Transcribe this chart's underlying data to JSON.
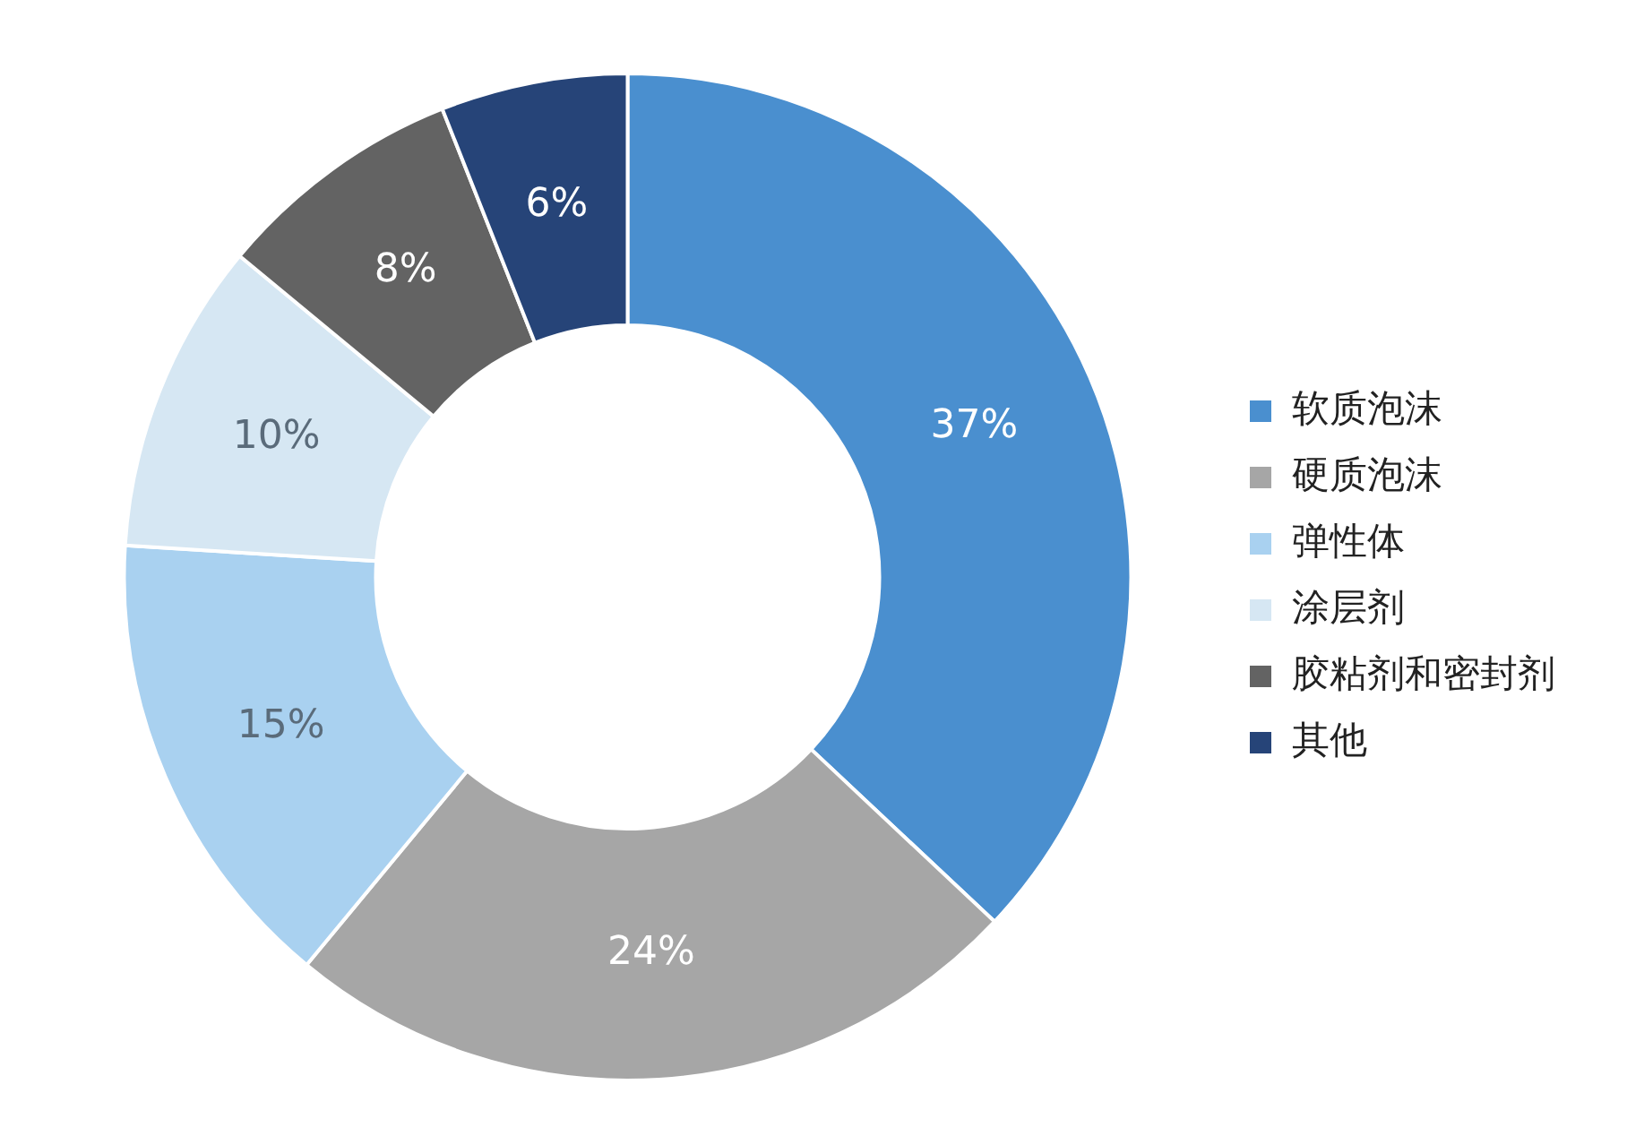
{
  "chart_data": {
    "type": "donut",
    "categories": [
      "软质泡沫",
      "硬质泡沫",
      "弹性体",
      "涂层剂",
      "胶粘剂和密封剂",
      "其他"
    ],
    "values": [
      37,
      24,
      15,
      10,
      8,
      6
    ],
    "colors": [
      "#4a8fcf",
      "#a6a6a6",
      "#a9d1f0",
      "#d6e7f3",
      "#636363",
      "#264478"
    ],
    "value_labels": [
      "37%",
      "24%",
      "15%",
      "10%",
      "8%",
      "6%"
    ],
    "legend": "right"
  }
}
